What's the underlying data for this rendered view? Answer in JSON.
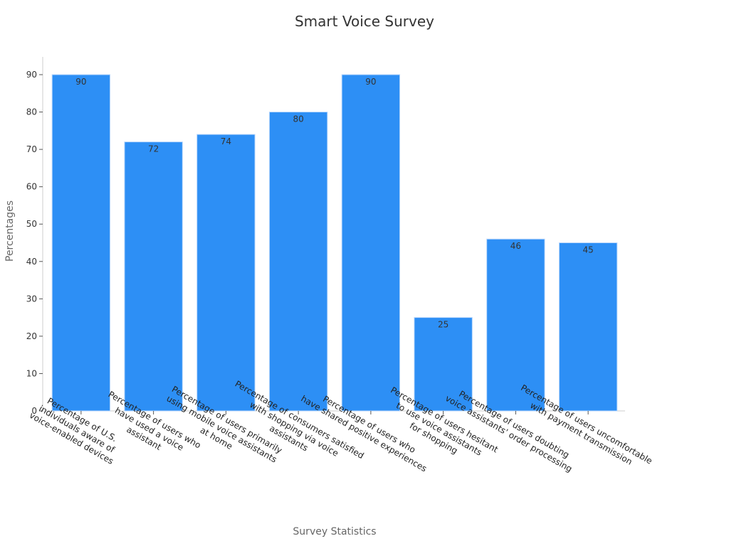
{
  "chart_data": {
    "type": "bar",
    "title": "Smart Voice Survey",
    "xlabel": "Survey Statistics",
    "ylabel": "Percentages",
    "ylim": [
      0,
      95
    ],
    "yticks": [
      0,
      10,
      20,
      30,
      40,
      50,
      60,
      70,
      80,
      90
    ],
    "grid": false,
    "categories": [
      [
        "Percentage of U.S.",
        "individuals aware of",
        "voice-enabled devices"
      ],
      [
        "Percentage of users who",
        "have used a voice",
        "assistant"
      ],
      [
        "Percentage of users primarily",
        "using mobile voice assistants",
        "at home"
      ],
      [
        "Percentage of consumers satisfied",
        "with shopping via voice",
        "assistants"
      ],
      [
        "Percentage of users who",
        "have shared positive experiences"
      ],
      [
        "Percentage of users hesitant",
        "to use voice assistants",
        "for shopping"
      ],
      [
        "Percentage of users doubting",
        "voice assistants' order processing"
      ],
      [
        "Percentage of users uncomfortable",
        "with payment transmission"
      ]
    ],
    "values": [
      90,
      72,
      74,
      80,
      90,
      25,
      46,
      45
    ],
    "colors": {
      "bar": "#2d8ff5",
      "bar_edge": "#b9d7fb",
      "axis": "#cccccc"
    }
  }
}
